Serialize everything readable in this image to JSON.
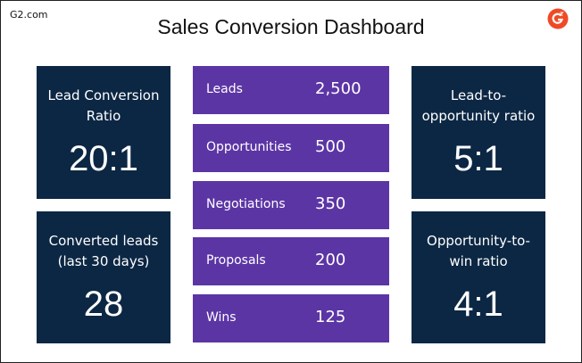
{
  "header": {
    "brand": "G2.com",
    "title": "Sales Conversion Dashboard"
  },
  "left_cards": [
    {
      "label": [
        "Lead Conversion",
        "Ratio"
      ],
      "value": "20:1"
    },
    {
      "label": [
        "Converted leads",
        "(last 30 days)"
      ],
      "value": "28"
    }
  ],
  "funnel": [
    {
      "label": "Leads",
      "value": "2,500"
    },
    {
      "label": "Opportunities",
      "value": "500"
    },
    {
      "label": "Negotiations",
      "value": "350"
    },
    {
      "label": "Proposals",
      "value": "200"
    },
    {
      "label": "Wins",
      "value": "125"
    }
  ],
  "right_cards": [
    {
      "label": [
        "Lead-to-",
        "opportunity ratio"
      ],
      "value": "5:1"
    },
    {
      "label": [
        "Opportunity-to-",
        "win ratio"
      ],
      "value": "4:1"
    }
  ]
}
